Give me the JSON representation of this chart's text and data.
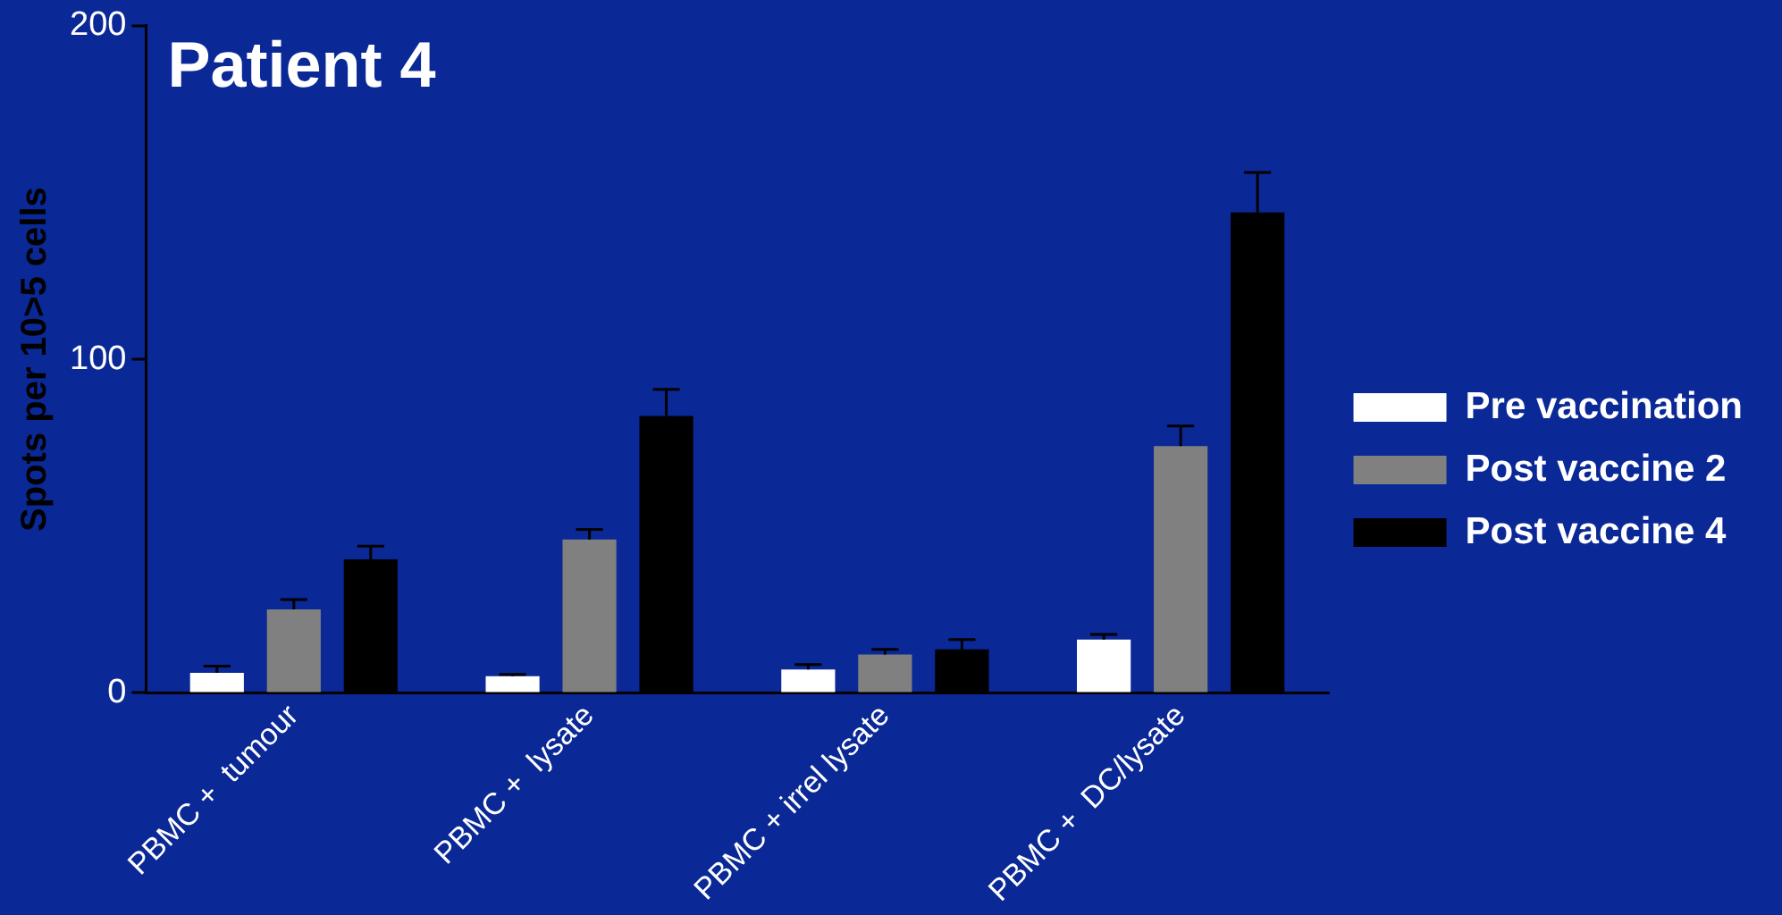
{
  "chart_data": {
    "type": "bar",
    "title": "Patient 4",
    "ylabel": "Spots per 10>5 cells",
    "categories": [
      "PBMC +  tumour",
      "PBMC +  lysate",
      "PBMC + irrel lysate",
      "PBMC +  DC/lysate"
    ],
    "series": [
      {
        "name": "Pre vaccination",
        "color": "#ffffff",
        "values": [
          6,
          5,
          7,
          16
        ],
        "errors": [
          [
            6,
            8
          ],
          [
            5,
            5.5
          ],
          [
            7,
            8.5
          ],
          [
            16,
            17.5
          ]
        ]
      },
      {
        "name": "Post vaccine 2",
        "color": "#808080",
        "values": [
          25,
          46,
          11.5,
          74
        ],
        "errors": [
          [
            25,
            28
          ],
          [
            46,
            49
          ],
          [
            11.5,
            13
          ],
          [
            74,
            80
          ]
        ]
      },
      {
        "name": "Post vaccine 4",
        "color": "#000000",
        "values": [
          40,
          83,
          13,
          144
        ],
        "errors": [
          [
            40,
            44
          ],
          [
            83,
            91
          ],
          [
            13,
            16
          ],
          [
            144,
            156
          ]
        ]
      }
    ],
    "ylim": [
      0,
      200
    ],
    "yticks": [
      0,
      100,
      200
    ],
    "grid": false,
    "legend": "right"
  }
}
